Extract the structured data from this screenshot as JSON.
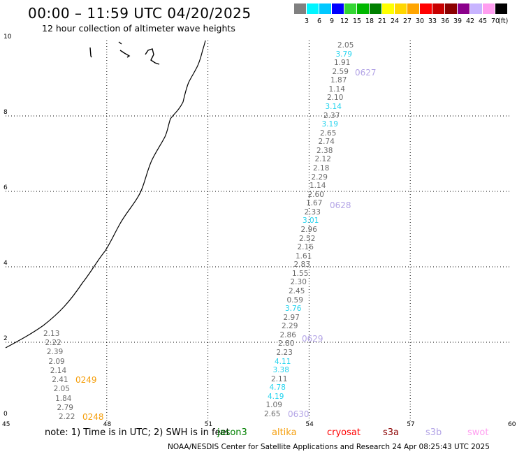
{
  "title": "00:00 – 11:59 UTC 04/20/2025",
  "subtitle": "12 hour collection of altimeter wave heights",
  "color_scale": {
    "unit": "(ft)",
    "colors": [
      "#808080",
      "#00f5ff",
      "#00c8ff",
      "#0000ff",
      "#33d633",
      "#00b800",
      "#008000",
      "#ffff00",
      "#ffd700",
      "#ffa500",
      "#ff0000",
      "#c80000",
      "#8b0000",
      "#8b008b",
      "#c8b4ff",
      "#ff9ef0",
      "#000000"
    ],
    "labels": [
      "3",
      "6",
      "9",
      "12",
      "15",
      "18",
      "21",
      "24",
      "27",
      "30",
      "33",
      "36",
      "39",
      "42",
      "45",
      "70"
    ]
  },
  "map": {
    "x_ticks": [
      "45",
      "48",
      "51",
      "54",
      "57",
      "60"
    ],
    "y_ticks": [
      "0",
      "2",
      "4",
      "6",
      "8",
      "10"
    ],
    "xlim": [
      45,
      60
    ],
    "ylim": [
      0,
      10
    ]
  },
  "passes": {
    "a": {
      "label": "0249",
      "label2": "0248",
      "values": [
        "2.13",
        "2.22",
        "2.39",
        "2.09",
        "2.14",
        "2.41",
        "2.05",
        "1.84",
        "2.79",
        "2.22"
      ]
    },
    "b": {
      "labels": [
        "0627",
        "0628",
        "0629",
        "0630"
      ],
      "values": [
        "2.05",
        "3.79",
        "1.91",
        "2.59",
        "1.87",
        "1.14",
        "2.10",
        "3.14",
        "2.37",
        "3.19",
        "2.65",
        "2.74",
        "2.38",
        "2.12",
        "2.18",
        "2.29",
        "1.14",
        "2.60",
        "1.67",
        "2.33",
        "3.01",
        "2.96",
        "2.52",
        "2.16",
        "1.61",
        "2.83",
        "1.55",
        "2.30",
        "2.45",
        "0.59",
        "3.76",
        "2.97",
        "2.29",
        "2.86",
        "2.80",
        "2.23",
        "4.11",
        "3.38",
        "2.11",
        "4.78",
        "4.19",
        "1.09",
        "2.65"
      ]
    }
  },
  "note": "note: 1) Time is in UTC; 2) SWH is in feet",
  "legend": [
    {
      "name": "jason3",
      "color": "#008000"
    },
    {
      "name": "altika",
      "color": "#f59e0b"
    },
    {
      "name": "cryosat",
      "color": "#ff0000"
    },
    {
      "name": "s3a",
      "color": "#8b0000"
    },
    {
      "name": "s3b",
      "color": "#b3a4e6"
    },
    {
      "name": "swot",
      "color": "#ff9ef0"
    }
  ],
  "footer": "NOAA/NESDIS Center for Satellite Applications and Research    24 Apr 08:25:43 UTC 2025"
}
